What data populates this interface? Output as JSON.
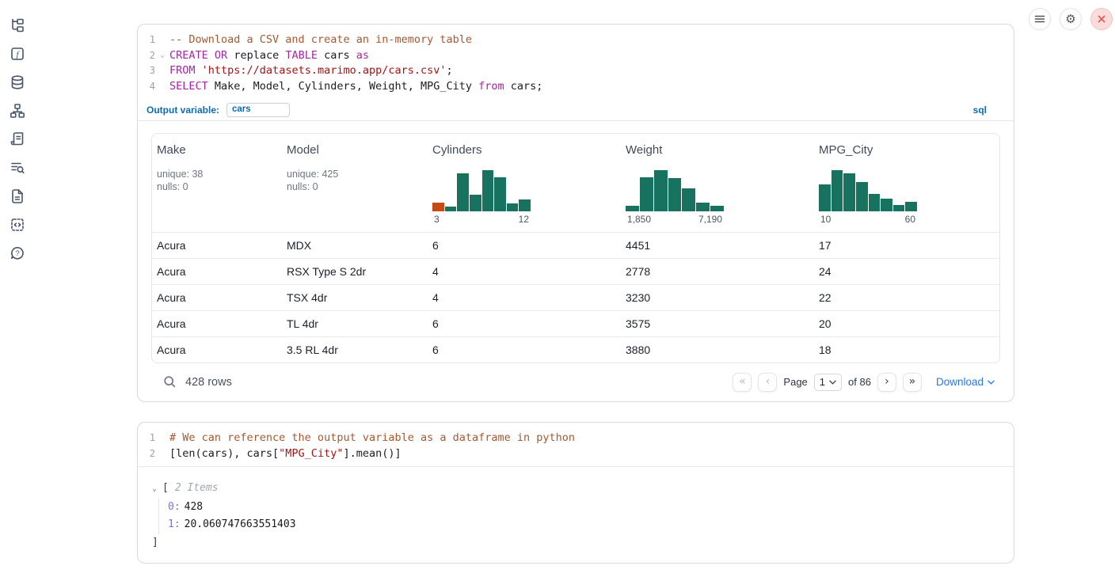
{
  "sidebar": {
    "icons": [
      "file-tree",
      "function-square",
      "database",
      "dependency-graph",
      "scroll-text",
      "logs-search",
      "documentation",
      "snippets",
      "help"
    ]
  },
  "toolbar": {
    "icons": [
      {
        "name": "menu"
      },
      {
        "name": "settings",
        "glyph": "⚙"
      },
      {
        "name": "close"
      }
    ]
  },
  "cells": [
    {
      "language_badge": "sql",
      "output_variable": {
        "label": "Output variable:",
        "value": "cars"
      },
      "code": {
        "lines": [
          {
            "num": "1",
            "fold": false,
            "tokens": [
              {
                "type": "comment",
                "text": "-- Download a CSV and create an in-memory table"
              }
            ]
          },
          {
            "num": "2",
            "fold": true,
            "tokens": [
              {
                "type": "keyword",
                "text": "CREATE"
              },
              {
                "type": "plain",
                "text": " "
              },
              {
                "type": "keyword",
                "text": "OR"
              },
              {
                "type": "plain",
                "text": " replace "
              },
              {
                "type": "keyword",
                "text": "TABLE"
              },
              {
                "type": "plain",
                "text": " cars "
              },
              {
                "type": "keyword",
                "text": "as"
              }
            ]
          },
          {
            "num": "3",
            "fold": false,
            "tokens": [
              {
                "type": "keyword",
                "text": "FROM"
              },
              {
                "type": "plain",
                "text": " "
              },
              {
                "type": "string",
                "text": "'https://datasets.marimo.app/cars.csv'"
              },
              {
                "type": "plain",
                "text": ";"
              }
            ]
          },
          {
            "num": "4",
            "fold": false,
            "tokens": [
              {
                "type": "keyword",
                "text": "SELECT"
              },
              {
                "type": "plain",
                "text": " Make, Model, Cylinders, Weight, MPG_City "
              },
              {
                "type": "keyword",
                "text": "from"
              },
              {
                "type": "plain",
                "text": " cars;"
              }
            ]
          }
        ]
      }
    },
    {
      "code": {
        "lines": [
          {
            "num": "1",
            "fold": false,
            "tokens": [
              {
                "type": "comment",
                "text": "# We can reference the output variable as a dataframe in python"
              }
            ]
          },
          {
            "num": "2",
            "fold": false,
            "tokens": [
              {
                "type": "plain",
                "text": "[len(cars), cars["
              },
              {
                "type": "string",
                "text": "\"MPG_City\""
              },
              {
                "type": "plain",
                "text": "].mean()]"
              }
            ]
          }
        ]
      },
      "output_tree": {
        "caret": "⌄",
        "open_bracket": "[",
        "items_label": "2 Items",
        "entries": [
          {
            "key": "0:",
            "value": "428"
          },
          {
            "key": "1:",
            "value": "20.060747663551403"
          }
        ],
        "close_bracket": "]"
      }
    }
  ],
  "table": {
    "columns": [
      {
        "name": "Make",
        "stats": [
          "unique: 38",
          "nulls: 0"
        ]
      },
      {
        "name": "Model",
        "stats": [
          "unique: 425",
          "nulls: 0"
        ]
      },
      {
        "name": "Cylinders"
      },
      {
        "name": "Weight"
      },
      {
        "name": "MPG_City"
      }
    ],
    "rows": [
      [
        "Acura",
        "MDX",
        "6",
        "4451",
        "17"
      ],
      [
        "Acura",
        "RSX Type S 2dr",
        "4",
        "2778",
        "24"
      ],
      [
        "Acura",
        "TSX 4dr",
        "4",
        "3230",
        "22"
      ],
      [
        "Acura",
        "TL 4dr",
        "6",
        "3575",
        "20"
      ],
      [
        "Acura",
        "3.5 RL 4dr",
        "6",
        "3880",
        "18"
      ]
    ],
    "footer": {
      "row_count": "428 rows",
      "page_label": "Page",
      "page_value": "1",
      "total_label": "of 86",
      "download_label": "Download",
      "pager_icons": [
        "«",
        "‹",
        "›",
        "»"
      ]
    }
  },
  "chart_data": [
    {
      "type": "bar",
      "title": "Cylinders column histogram",
      "x_min_label": "3",
      "x_max_label": "12",
      "bar_heights_rel": [
        0.22,
        0.12,
        0.93,
        0.4,
        1.0,
        0.82,
        0.2,
        0.28
      ],
      "bar_colors": [
        "#c44d16",
        "#17735f",
        "#17735f",
        "#17735f",
        "#17735f",
        "#17735f",
        "#17735f",
        "#17735f"
      ]
    },
    {
      "type": "bar",
      "title": "Weight column histogram",
      "x_min_label": "1,850",
      "x_max_label": "7,190",
      "bar_heights_rel": [
        0.13,
        0.82,
        1.0,
        0.8,
        0.55,
        0.22,
        0.13
      ],
      "bar_colors": [
        "#17735f",
        "#17735f",
        "#17735f",
        "#17735f",
        "#17735f",
        "#17735f",
        "#17735f"
      ]
    },
    {
      "type": "bar",
      "title": "MPG_City column histogram",
      "x_min_label": "10",
      "x_max_label": "60",
      "bar_heights_rel": [
        0.66,
        1.0,
        0.93,
        0.72,
        0.43,
        0.3,
        0.15,
        0.23
      ],
      "bar_colors": [
        "#17735f",
        "#17735f",
        "#17735f",
        "#17735f",
        "#17735f",
        "#17735f",
        "#17735f",
        "#17735f"
      ]
    }
  ]
}
